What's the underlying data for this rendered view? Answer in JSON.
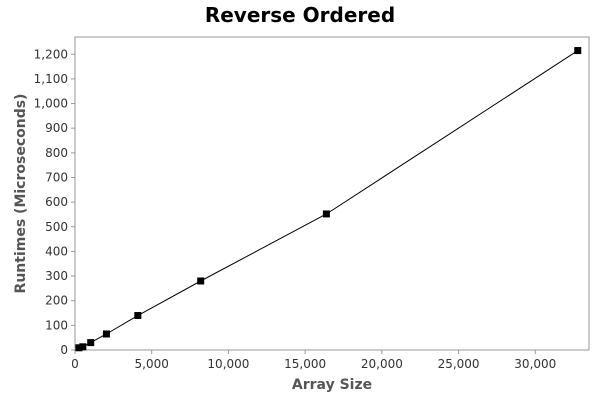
{
  "chart_data": {
    "type": "line",
    "title": "Reverse Ordered",
    "xlabel": "Array Size",
    "ylabel": "Runtimes (Microseconds)",
    "xlim": [
      0,
      33500
    ],
    "ylim": [
      0,
      1270
    ],
    "x_ticks": [
      0,
      5000,
      10000,
      15000,
      20000,
      25000,
      30000
    ],
    "x_tick_labels": [
      "0",
      "5,000",
      "10,000",
      "15,000",
      "20,000",
      "25,000",
      "30,000"
    ],
    "y_ticks": [
      0,
      100,
      200,
      300,
      400,
      500,
      600,
      700,
      800,
      900,
      1000,
      1100,
      1200
    ],
    "y_tick_labels": [
      "0",
      "100",
      "200",
      "300",
      "400",
      "500",
      "600",
      "700",
      "800",
      "900",
      "1,000",
      "1,100",
      "1,200"
    ],
    "grid": false,
    "series": [
      {
        "color": "#000000",
        "marker": "square",
        "x": [
          256,
          512,
          1024,
          2048,
          4096,
          8192,
          16384,
          32768
        ],
        "y": [
          9,
          13,
          30,
          65,
          140,
          280,
          552,
          1215
        ]
      }
    ]
  }
}
